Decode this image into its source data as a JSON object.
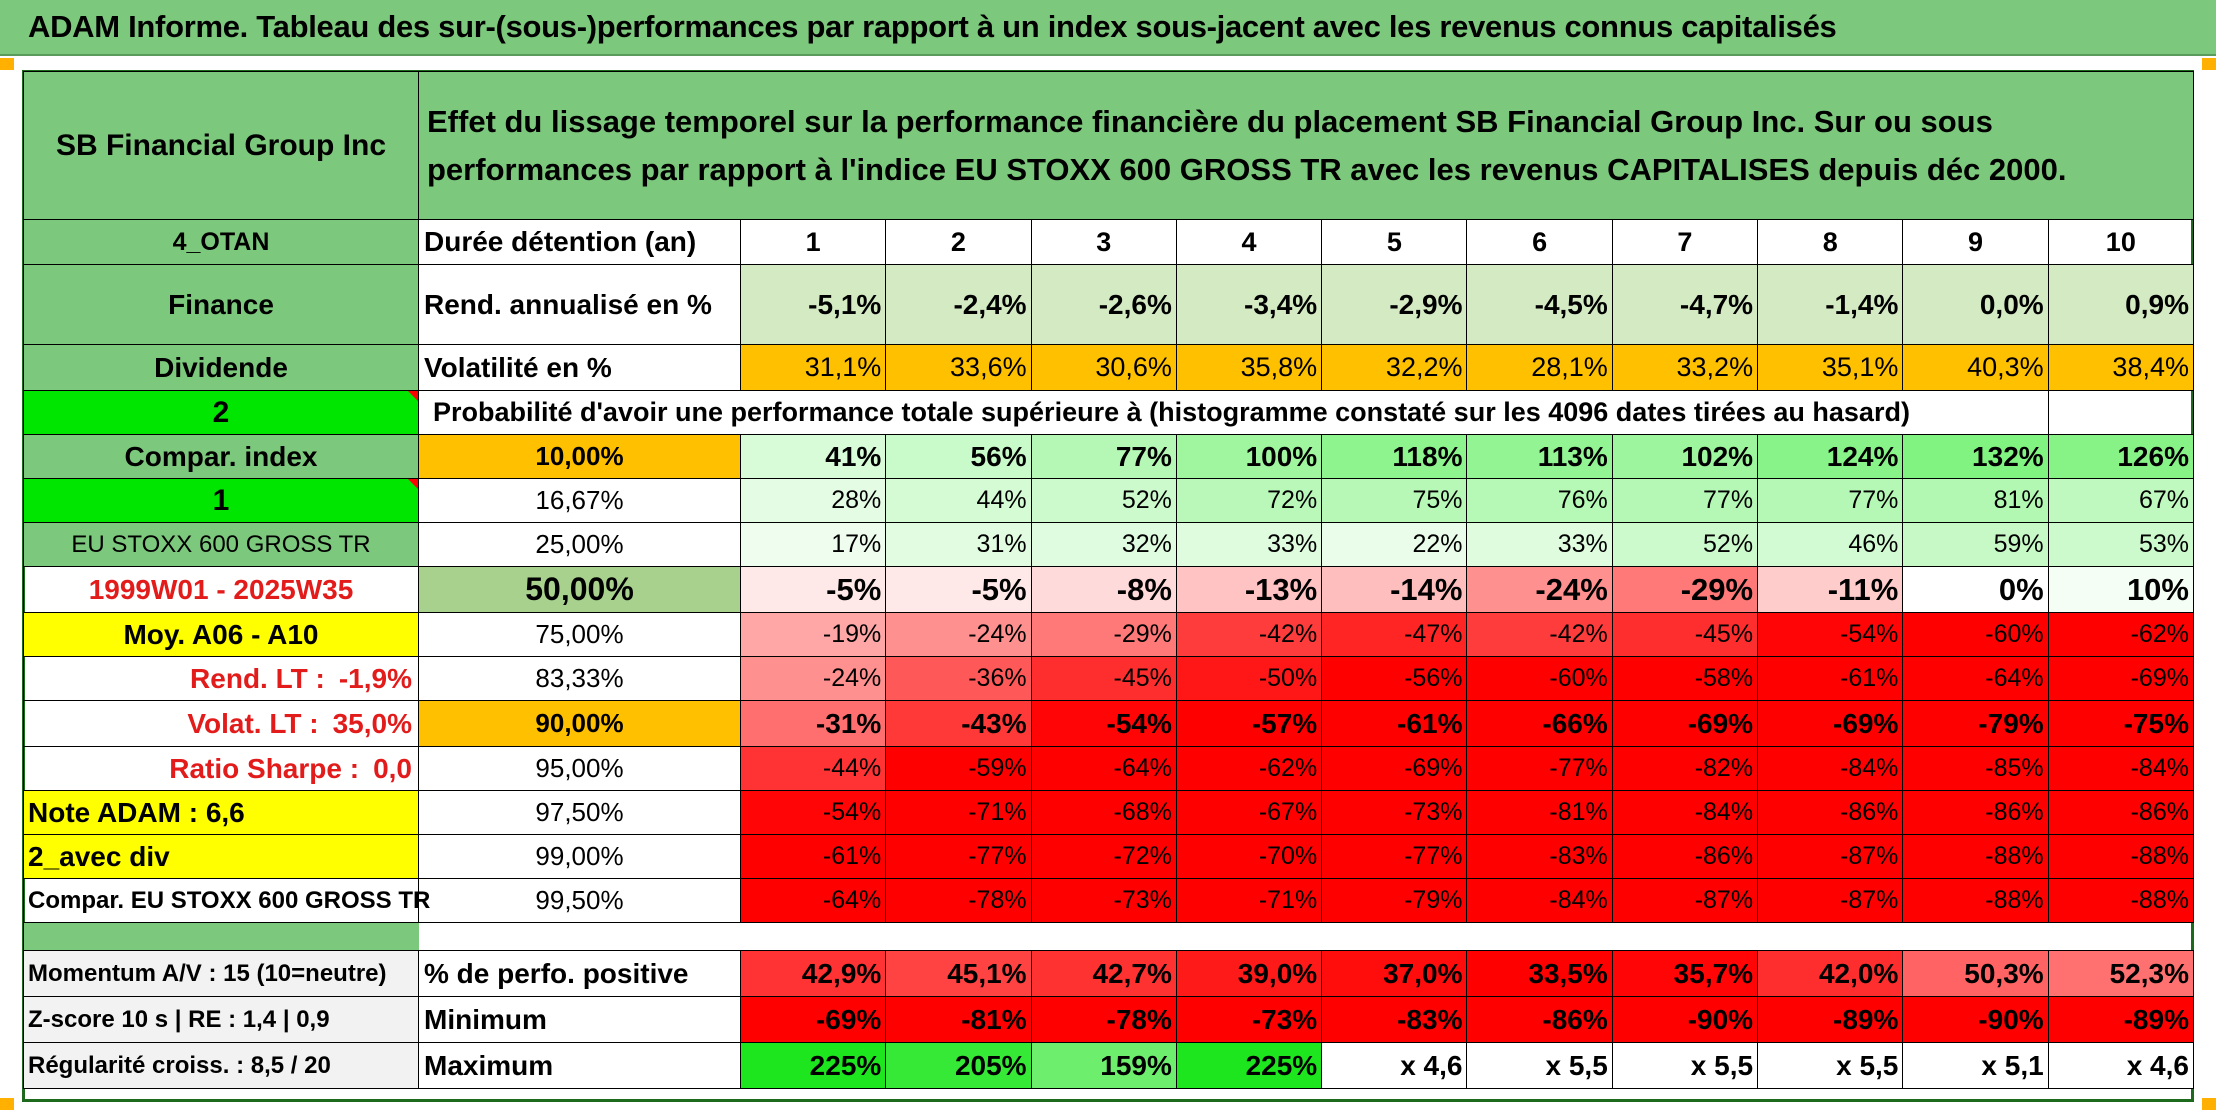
{
  "title": "ADAM Informe. Tableau des sur-(sous-)performances par rapport à un index sous-jacent avec les revenus connus capitalisés",
  "header": {
    "company": "SB Financial Group Inc",
    "description": "Effet du lissage temporel sur la performance financière du placement SB Financial Group Inc. Sur ou sous performances par rapport à l'indice EU STOXX 600 GROSS TR avec les revenus CAPITALISES depuis déc 2000."
  },
  "left": {
    "otan": "4_OTAN",
    "sector": "Finance",
    "type": "Dividende",
    "num2": "2",
    "compar_index": "Compar. index",
    "num1": "1",
    "index_name": "EU STOXX 600 GROSS TR",
    "period": "1999W01 - 2025W35",
    "moy": "Moy. A06 - A10",
    "rend_lt_label": "Rend. LT :",
    "rend_lt_value": "-1,9%",
    "volat_lt_label": "Volat. LT :",
    "volat_lt_value": "35,0%",
    "sharpe_label": "Ratio Sharpe :",
    "sharpe_value": "0,0",
    "note": "Note ADAM : 6,6",
    "avec_div": "2_avec div",
    "compar_full": "Compar. EU STOXX 600 GROSS TR"
  },
  "row_labels": {
    "duree": "Durée détention (an)",
    "rend": "Rend. annualisé en %",
    "volat": "Volatilité en %",
    "proba": "Probabilité d'avoir une performance totale supérieure à (histogramme constaté sur les 4096 dates tirées au hasard)"
  },
  "years": [
    "1",
    "2",
    "3",
    "4",
    "5",
    "6",
    "7",
    "8",
    "9",
    "10"
  ],
  "rend": [
    "-5,1%",
    "-2,4%",
    "-2,6%",
    "-3,4%",
    "-2,9%",
    "-4,5%",
    "-4,7%",
    "-1,4%",
    "0,0%",
    "0,9%"
  ],
  "volat": [
    "31,1%",
    "33,6%",
    "30,6%",
    "35,8%",
    "32,2%",
    "28,1%",
    "33,2%",
    "35,1%",
    "40,3%",
    "38,4%"
  ],
  "percentiles": [
    {
      "p": "10,00%",
      "v": [
        "41%",
        "56%",
        "77%",
        "100%",
        "118%",
        "113%",
        "102%",
        "124%",
        "132%",
        "126%"
      ]
    },
    {
      "p": "16,67%",
      "v": [
        "28%",
        "44%",
        "52%",
        "72%",
        "75%",
        "76%",
        "77%",
        "77%",
        "81%",
        "67%"
      ]
    },
    {
      "p": "25,00%",
      "v": [
        "17%",
        "31%",
        "32%",
        "33%",
        "22%",
        "33%",
        "52%",
        "46%",
        "59%",
        "53%"
      ]
    },
    {
      "p": "50,00%",
      "v": [
        "-5%",
        "-5%",
        "-8%",
        "-13%",
        "-14%",
        "-24%",
        "-29%",
        "-11%",
        "0%",
        "10%"
      ]
    },
    {
      "p": "75,00%",
      "v": [
        "-19%",
        "-24%",
        "-29%",
        "-42%",
        "-47%",
        "-42%",
        "-45%",
        "-54%",
        "-60%",
        "-62%"
      ]
    },
    {
      "p": "83,33%",
      "v": [
        "-24%",
        "-36%",
        "-45%",
        "-50%",
        "-56%",
        "-60%",
        "-58%",
        "-61%",
        "-64%",
        "-69%"
      ]
    },
    {
      "p": "90,00%",
      "v": [
        "-31%",
        "-43%",
        "-54%",
        "-57%",
        "-61%",
        "-66%",
        "-69%",
        "-69%",
        "-79%",
        "-75%"
      ]
    },
    {
      "p": "95,00%",
      "v": [
        "-44%",
        "-59%",
        "-64%",
        "-62%",
        "-69%",
        "-77%",
        "-82%",
        "-84%",
        "-85%",
        "-84%"
      ]
    },
    {
      "p": "97,50%",
      "v": [
        "-54%",
        "-71%",
        "-68%",
        "-67%",
        "-73%",
        "-81%",
        "-84%",
        "-86%",
        "-86%",
        "-86%"
      ]
    },
    {
      "p": "99,00%",
      "v": [
        "-61%",
        "-77%",
        "-72%",
        "-70%",
        "-77%",
        "-83%",
        "-86%",
        "-87%",
        "-88%",
        "-88%"
      ]
    },
    {
      "p": "99,50%",
      "v": [
        "-64%",
        "-78%",
        "-73%",
        "-71%",
        "-79%",
        "-84%",
        "-87%",
        "-87%",
        "-88%",
        "-88%"
      ]
    }
  ],
  "bottom": [
    {
      "left": "Momentum A/V : 15 (10=neutre)",
      "label": "% de perfo. positive",
      "v": [
        "42,9%",
        "45,1%",
        "42,7%",
        "39,0%",
        "37,0%",
        "33,5%",
        "35,7%",
        "42,0%",
        "50,3%",
        "52,3%"
      ]
    },
    {
      "left": "Z-score 10 s | RE : 1,4 | 0,9",
      "label": "Minimum",
      "v": [
        "-69%",
        "-81%",
        "-78%",
        "-73%",
        "-83%",
        "-86%",
        "-90%",
        "-89%",
        "-90%",
        "-89%"
      ]
    },
    {
      "left": "Régularité croiss. : 8,5 / 20",
      "label": "Maximum",
      "v": [
        "225%",
        "205%",
        "159%",
        "225%",
        "x 4,6",
        "x 5,5",
        "x 5,5",
        "x 5,5",
        "x 5,1",
        "x 4,6"
      ]
    }
  ],
  "colors": {
    "header_green": "#7cc87c",
    "bright_green": "#00e600",
    "orange": "#ffc000",
    "yellow": "#ffff00",
    "red": "#ff0000",
    "text_red": "#e21b1b"
  }
}
